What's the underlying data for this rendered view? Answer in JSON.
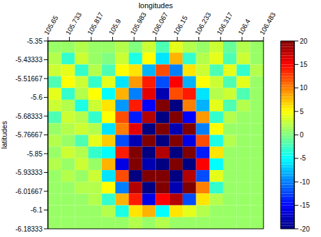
{
  "chart_data": {
    "type": "heatmap",
    "x_label": "longitudes",
    "y_label": "latitudes",
    "xlim": [
      105.65,
      106.483
    ],
    "ylim": [
      -6.18333,
      -5.35
    ],
    "xticks": [
      105.65,
      105.733,
      105.817,
      105.9,
      105.983,
      106.067,
      106.15,
      106.233,
      106.317,
      106.4,
      106.483
    ],
    "yticks": [
      -6.18333,
      -6.1,
      -6.01667,
      -5.93333,
      -5.85,
      -5.76667,
      -5.68333,
      -5.6,
      -5.51667,
      -5.43333,
      -5.35
    ],
    "cells": [
      [
        1,
        1,
        2,
        1,
        1,
        2,
        0,
        3,
        -2,
        4,
        2,
        1,
        3,
        -1,
        2,
        1
      ],
      [
        2,
        -3,
        3,
        1,
        0,
        3,
        -4,
        5,
        -6,
        8,
        -3,
        2,
        4,
        -2,
        3,
        1
      ],
      [
        3,
        4,
        -3,
        2,
        -2,
        5,
        6,
        -8,
        12,
        -10,
        6,
        3,
        -2,
        4,
        -3,
        2
      ],
      [
        -2,
        5,
        3,
        -3,
        4,
        -6,
        9,
        14,
        -12,
        15,
        -8,
        5,
        3,
        -2,
        4,
        1
      ],
      [
        4,
        -3,
        2,
        5,
        -5,
        8,
        -10,
        16,
        -18,
        12,
        14,
        -6,
        2,
        3,
        -2,
        1
      ],
      [
        3,
        2,
        -4,
        3,
        6,
        -9,
        14,
        -15,
        20,
        -20,
        10,
        -8,
        4,
        -2,
        2,
        1
      ],
      [
        -2,
        3,
        2,
        -3,
        5,
        12,
        -14,
        18,
        -20,
        20,
        -15,
        9,
        -3,
        2,
        1,
        1
      ],
      [
        1,
        2,
        3,
        2,
        -6,
        10,
        16,
        -20,
        20,
        -18,
        20,
        -10,
        5,
        1,
        1,
        1
      ],
      [
        2,
        1,
        -2,
        4,
        7,
        -12,
        -18,
        20,
        -20,
        20,
        -16,
        12,
        -4,
        2,
        1,
        1
      ],
      [
        1,
        3,
        2,
        -3,
        -5,
        14,
        20,
        -20,
        18,
        -20,
        20,
        -14,
        6,
        1,
        1,
        1
      ],
      [
        2,
        1,
        3,
        1,
        8,
        -16,
        20,
        -18,
        -20,
        20,
        -20,
        15,
        -5,
        1,
        1,
        1
      ],
      [
        1,
        2,
        1,
        3,
        -6,
        12,
        -20,
        20,
        20,
        -20,
        18,
        -12,
        4,
        1,
        1,
        1
      ],
      [
        1,
        1,
        2,
        2,
        5,
        -10,
        18,
        -20,
        20,
        -18,
        20,
        10,
        -3,
        1,
        1,
        1
      ],
      [
        1,
        1,
        1,
        2,
        -3,
        8,
        14,
        -16,
        15,
        18,
        -12,
        6,
        2,
        1,
        1,
        1
      ],
      [
        1,
        1,
        1,
        1,
        2,
        -4,
        6,
        8,
        -5,
        6,
        4,
        2,
        1,
        1,
        1,
        1
      ],
      [
        1,
        1,
        1,
        1,
        1,
        1,
        2,
        1,
        2,
        1,
        1,
        1,
        1,
        1,
        1,
        1
      ]
    ],
    "color_range": [
      -20,
      20
    ],
    "color_ticks": [
      -20,
      -15,
      -10,
      -5,
      0,
      5,
      10,
      15,
      20
    ]
  }
}
